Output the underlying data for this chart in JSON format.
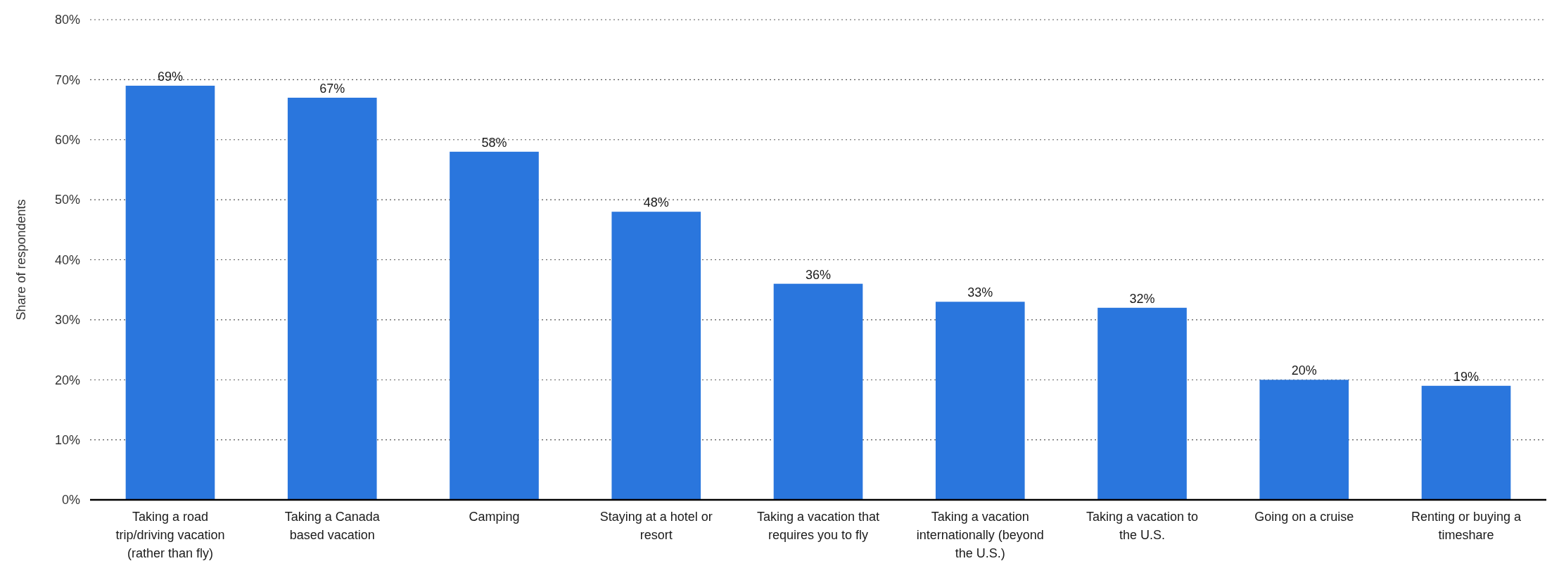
{
  "chart_data": {
    "type": "bar",
    "ylabel": "Share of respondents",
    "categories": [
      "Taking a road trip/driving vacation (rather than fly)",
      "Taking a Canada based vacation",
      "Camping",
      "Staying at a hotel or resort",
      "Taking a vacation that requires you to fly",
      "Taking a vacation internationally (beyond the U.S.)",
      "Taking a vacation to the U.S.",
      "Going on a cruise",
      "Renting or buying a timeshare"
    ],
    "values": [
      69,
      67,
      58,
      48,
      36,
      33,
      32,
      20,
      19
    ],
    "value_labels": [
      "69%",
      "67%",
      "58%",
      "48%",
      "36%",
      "33%",
      "32%",
      "20%",
      "19%"
    ],
    "color": "#2a76dd",
    "ylim": [
      0,
      80
    ],
    "yticks": [
      {
        "value": 0,
        "label": "0%"
      },
      {
        "value": 10,
        "label": "10%"
      },
      {
        "value": 20,
        "label": "20%"
      },
      {
        "value": 30,
        "label": "30%"
      },
      {
        "value": 40,
        "label": "40%"
      },
      {
        "value": 50,
        "label": "50%"
      },
      {
        "value": 60,
        "label": "60%"
      },
      {
        "value": 70,
        "label": "70%"
      },
      {
        "value": 80,
        "label": "80%"
      }
    ],
    "grid": "y"
  }
}
